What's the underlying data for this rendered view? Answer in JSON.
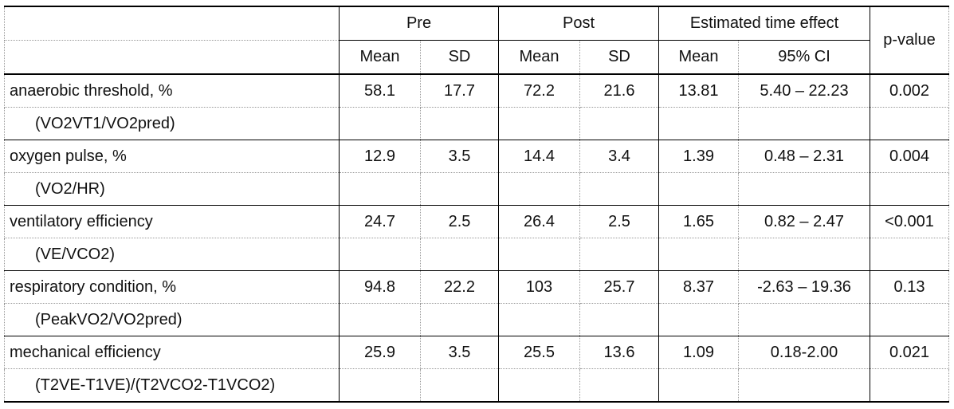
{
  "table": {
    "header": {
      "groups": [
        "Pre",
        "Post",
        "Estimated time effect"
      ],
      "columns": [
        "Mean",
        "SD",
        "Mean",
        "SD",
        "Mean",
        "95% CI",
        "p-value"
      ]
    },
    "rows": [
      {
        "label": "anaerobic threshold, %",
        "sublabel": "(VO2VT1/VO2pred)",
        "cells": [
          "58.1",
          "17.7",
          "72.2",
          "21.6",
          "13.81",
          "5.40 – 22.23",
          "0.002"
        ]
      },
      {
        "label": "oxygen pulse, %",
        "sublabel": "(VO2/HR)",
        "cells": [
          "12.9",
          "3.5",
          "14.4",
          "3.4",
          "1.39",
          "0.48 – 2.31",
          "0.004"
        ]
      },
      {
        "label": "ventilatory efficiency",
        "sublabel": "(VE/VCO2)",
        "cells": [
          "24.7",
          "2.5",
          "26.4",
          "2.5",
          "1.65",
          "0.82 – 2.47",
          "<0.001"
        ]
      },
      {
        "label": "respiratory condition, %",
        "sublabel": "(PeakVO2/VO2pred)",
        "cells": [
          "94.8",
          "22.2",
          "103",
          "25.7",
          "8.37",
          "-2.63 – 19.36",
          "0.13"
        ]
      },
      {
        "label": "mechanical efficiency",
        "sublabel": "(T2VE-T1VE)/(T2VCO2-T1VCO2)",
        "cells": [
          "25.9",
          "3.5",
          "25.5",
          "13.6",
          "1.09",
          "0.18-2.00",
          "0.021"
        ]
      }
    ]
  }
}
